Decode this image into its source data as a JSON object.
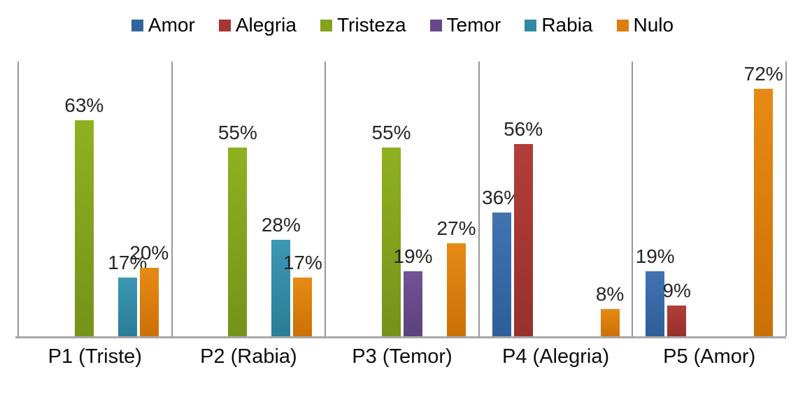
{
  "chart_data": {
    "type": "bar",
    "title": "",
    "categories": [
      "P1 (Triste)",
      "P2 (Rabia)",
      "P3 (Temor)",
      "P4 (Alegria)",
      "P5 (Amor)"
    ],
    "series": [
      {
        "name": "Amor",
        "color": "#31649C",
        "gradient_top": "#4273B1",
        "gradient_bottom": "#2E5E99",
        "values": [
          null,
          null,
          null,
          36,
          19
        ]
      },
      {
        "name": "Alegria",
        "color": "#A53631",
        "gradient_top": "#B23E38",
        "gradient_bottom": "#97302B",
        "values": [
          null,
          null,
          null,
          56,
          9
        ]
      },
      {
        "name": "Tristeza",
        "color": "#84A31C",
        "gradient_top": "#8FB120",
        "gradient_bottom": "#75921A",
        "values": [
          63,
          55,
          55,
          null,
          null
        ]
      },
      {
        "name": "Temor",
        "color": "#65488A",
        "gradient_top": "#715397",
        "gradient_bottom": "#5B417D",
        "values": [
          null,
          null,
          19,
          null,
          null
        ]
      },
      {
        "name": "Rabia",
        "color": "#3189A6",
        "gradient_top": "#3C98B4",
        "gradient_bottom": "#2A7D96",
        "values": [
          17,
          28,
          null,
          null,
          null
        ]
      },
      {
        "name": "Nulo",
        "color": "#DC7D0E",
        "gradient_top": "#E78A15",
        "gradient_bottom": "#CB7005",
        "values": [
          20,
          17,
          27,
          8,
          72
        ]
      }
    ],
    "value_suffix": "%",
    "ylim": [
      0,
      80
    ],
    "grid": false,
    "legend_position": "top",
    "data_labels": true,
    "axis_color": "#a8a8a8",
    "separator_color": "#979797"
  }
}
